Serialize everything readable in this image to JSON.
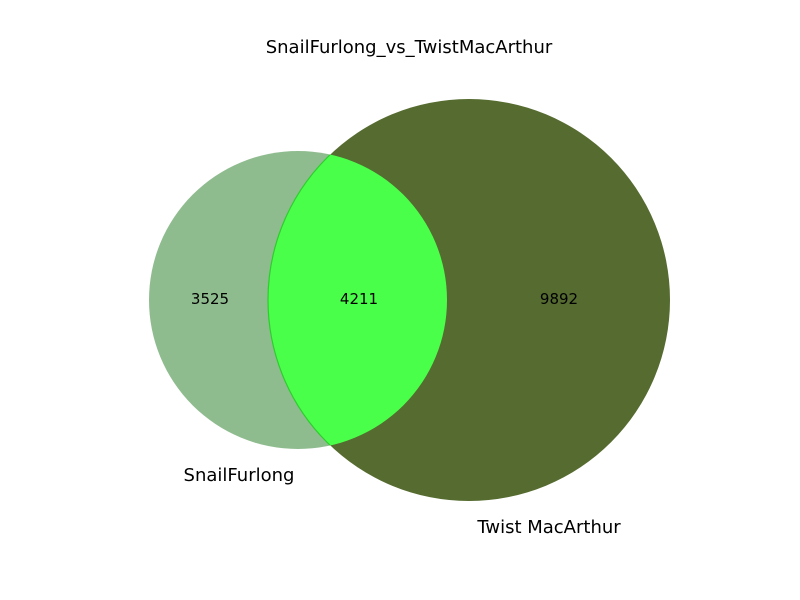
{
  "chart_data": {
    "type": "venn",
    "title": "SnailFurlong_vs_TwistMacArthur",
    "sets": [
      {
        "name": "SnailFurlong",
        "only_count": "3525",
        "color": "#8fbc8f"
      },
      {
        "name": "Twist MacArthur",
        "only_count": "9892",
        "color": "#556b2f"
      }
    ],
    "intersection": {
      "count": "4211",
      "color": "#4aff4a"
    }
  }
}
